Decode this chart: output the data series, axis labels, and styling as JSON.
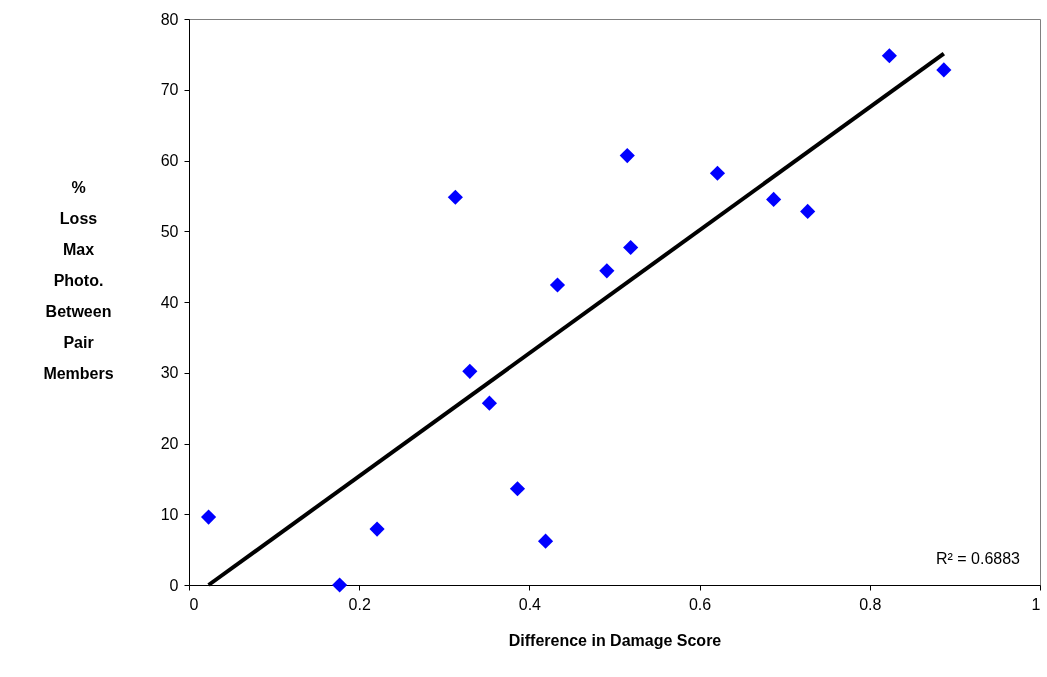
{
  "chart_data": {
    "type": "scatter",
    "xlabel": "Difference in Damage Score",
    "ylabel": "% Loss Max Photo. Between Pair Members",
    "xlim": [
      0,
      1
    ],
    "xticks": [
      0,
      0.2,
      0.4,
      0.6,
      0.8,
      1
    ],
    "ylim": [
      0,
      80
    ],
    "yticks": [
      0,
      10,
      20,
      30,
      40,
      50,
      60,
      70,
      80
    ],
    "grid": false,
    "series": [
      {
        "color": "#0000ff",
        "marker": "diamond",
        "x": [
          0.023,
          0.177,
          0.221,
          0.313,
          0.33,
          0.353,
          0.386,
          0.419,
          0.433,
          0.491,
          0.515,
          0.519,
          0.621,
          0.687,
          0.727,
          0.823,
          0.887
        ],
        "values": [
          9.6,
          0,
          7.9,
          54.8,
          30.2,
          25.7,
          13.6,
          6.2,
          42.4,
          44.4,
          60.7,
          47.7,
          58.2,
          54.5,
          52.8,
          74.8,
          72.8
        ]
      },
      {
        "type": "line",
        "color": "#000000",
        "line_style": "solid",
        "x": [
          0.023,
          0.887
        ],
        "values": [
          0,
          75.1
        ]
      }
    ],
    "annotations": [
      "R² = 0.6883"
    ]
  }
}
